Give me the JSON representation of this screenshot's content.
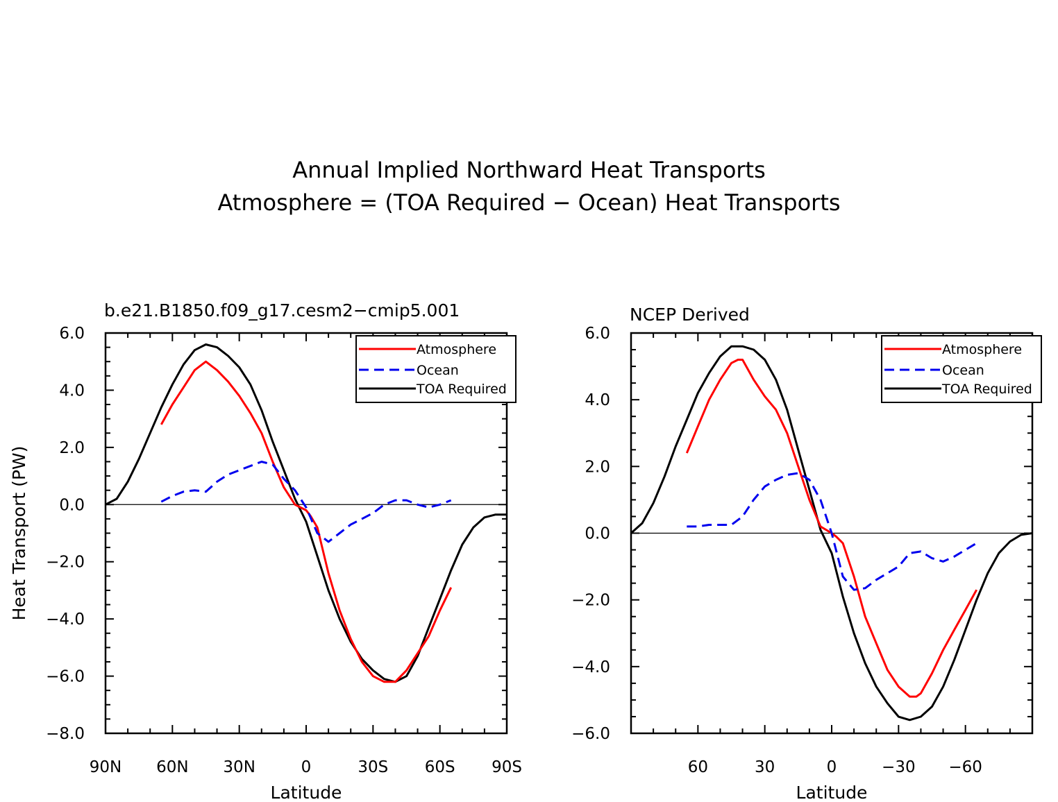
{
  "figure": {
    "title_line1": "Annual Implied Northward Heat Transports",
    "title_line2": "Atmosphere = (TOA Required - Ocean) Heat Transports"
  },
  "colors": {
    "atmosphere": "#ff0000",
    "ocean": "#0000ee",
    "toa": "#000000"
  },
  "chart_data": [
    {
      "type": "line",
      "title": "b.e21.B1850.f09_g17.cesm2-cmip5.001",
      "xlabel": "Latitude",
      "ylabel": "Heat Transport (PW)",
      "xlim": [
        90,
        -90
      ],
      "ylim": [
        -8,
        6
      ],
      "xticks": [
        90,
        60,
        30,
        0,
        -30,
        -60,
        -90
      ],
      "xtick_labels": [
        "90N",
        "60N",
        "30N",
        "0",
        "30S",
        "60S",
        "90S"
      ],
      "yticks": [
        6,
        4,
        2,
        0,
        -2,
        -4,
        -6,
        -8
      ],
      "ytick_labels": [
        "6.0",
        "4.0",
        "2.0",
        "0.0",
        "-2.0",
        "-4.0",
        "-6.0",
        "-8.0"
      ],
      "legend": {
        "position": "top-right",
        "entries": [
          "Atmosphere",
          "Ocean",
          "TOA Required"
        ]
      },
      "series": [
        {
          "name": "TOA Required",
          "style": "solid",
          "color": "#000000",
          "x": [
            90,
            85,
            80,
            75,
            70,
            65,
            60,
            55,
            50,
            45,
            40,
            35,
            30,
            25,
            20,
            15,
            10,
            5,
            0,
            -5,
            -10,
            -15,
            -20,
            -25,
            -30,
            -35,
            -40,
            -45,
            -50,
            -55,
            -60,
            -65,
            -70,
            -75,
            -80,
            -85,
            -90
          ],
          "y": [
            0.0,
            0.2,
            0.8,
            1.6,
            2.5,
            3.4,
            4.2,
            4.9,
            5.4,
            5.6,
            5.5,
            5.2,
            4.8,
            4.2,
            3.3,
            2.2,
            1.2,
            0.2,
            -0.6,
            -1.8,
            -3.0,
            -4.0,
            -4.8,
            -5.4,
            -5.8,
            -6.1,
            -6.2,
            -6.0,
            -5.3,
            -4.3,
            -3.3,
            -2.3,
            -1.4,
            -0.8,
            -0.45,
            -0.35,
            -0.35
          ]
        },
        {
          "name": "Atmosphere",
          "style": "solid",
          "color": "#ff0000",
          "x": [
            65,
            60,
            55,
            50,
            45,
            40,
            35,
            30,
            25,
            20,
            15,
            10,
            5,
            0,
            -2,
            -5,
            -10,
            -15,
            -20,
            -25,
            -30,
            -35,
            -40,
            -45,
            -50,
            -55,
            -60,
            -65
          ],
          "y": [
            2.8,
            3.5,
            4.1,
            4.7,
            5.0,
            4.7,
            4.3,
            3.8,
            3.2,
            2.5,
            1.5,
            0.6,
            0.0,
            -0.2,
            -0.4,
            -0.8,
            -2.4,
            -3.7,
            -4.7,
            -5.5,
            -6.0,
            -6.2,
            -6.2,
            -5.8,
            -5.2,
            -4.6,
            -3.7,
            -2.9
          ]
        },
        {
          "name": "Ocean",
          "style": "dashed",
          "color": "#0000ee",
          "x": [
            65,
            60,
            55,
            50,
            45,
            40,
            35,
            30,
            25,
            20,
            15,
            10,
            5,
            0,
            -5,
            -10,
            -15,
            -20,
            -25,
            -30,
            -35,
            -40,
            -45,
            -50,
            -55,
            -60,
            -65
          ],
          "y": [
            0.1,
            0.3,
            0.45,
            0.5,
            0.45,
            0.8,
            1.05,
            1.2,
            1.35,
            1.5,
            1.4,
            0.9,
            0.5,
            -0.1,
            -1.0,
            -1.3,
            -1.0,
            -0.7,
            -0.5,
            -0.3,
            0.0,
            0.15,
            0.15,
            0.0,
            -0.1,
            0.0,
            0.15
          ]
        }
      ]
    },
    {
      "type": "line",
      "title": "NCEP Derived",
      "xlabel": "Latitude",
      "ylabel": "",
      "xlim": [
        90,
        -90
      ],
      "ylim": [
        -6,
        6
      ],
      "xticks": [
        60,
        30,
        0,
        -30,
        -60
      ],
      "xtick_labels": [
        "60",
        "30",
        "0",
        "-30",
        "-60"
      ],
      "yticks": [
        6,
        4,
        2,
        0,
        -2,
        -4,
        -6
      ],
      "ytick_labels": [
        "6.0",
        "4.0",
        "2.0",
        "0.0",
        "-2.0",
        "-4.0",
        "-6.0"
      ],
      "legend": {
        "position": "top-right",
        "entries": [
          "Atmosphere",
          "Ocean",
          "TOA Required"
        ]
      },
      "series": [
        {
          "name": "TOA Required",
          "style": "solid",
          "color": "#000000",
          "x": [
            90,
            85,
            80,
            75,
            70,
            65,
            60,
            55,
            50,
            45,
            40,
            35,
            30,
            25,
            20,
            15,
            10,
            5,
            0,
            -5,
            -10,
            -15,
            -20,
            -25,
            -30,
            -35,
            -40,
            -45,
            -50,
            -55,
            -60,
            -65,
            -70,
            -75,
            -80,
            -85,
            -90
          ],
          "y": [
            0.0,
            0.3,
            0.9,
            1.7,
            2.6,
            3.4,
            4.2,
            4.8,
            5.3,
            5.6,
            5.6,
            5.5,
            5.2,
            4.6,
            3.7,
            2.5,
            1.3,
            0.1,
            -0.6,
            -1.9,
            -3.0,
            -3.9,
            -4.6,
            -5.1,
            -5.5,
            -5.6,
            -5.5,
            -5.2,
            -4.6,
            -3.8,
            -2.9,
            -2.0,
            -1.2,
            -0.6,
            -0.25,
            -0.05,
            0.0
          ]
        },
        {
          "name": "Atmosphere",
          "style": "solid",
          "color": "#ff0000",
          "x": [
            65,
            60,
            55,
            50,
            45,
            42,
            40,
            35,
            30,
            25,
            20,
            15,
            10,
            5,
            0,
            -2,
            -5,
            -10,
            -15,
            -20,
            -25,
            -30,
            -35,
            -38,
            -40,
            -45,
            -50,
            -55,
            -60,
            -65
          ],
          "y": [
            2.4,
            3.2,
            4.0,
            4.6,
            5.1,
            5.2,
            5.2,
            4.6,
            4.1,
            3.7,
            3.0,
            2.0,
            1.0,
            0.2,
            0.0,
            -0.1,
            -0.3,
            -1.3,
            -2.5,
            -3.3,
            -4.1,
            -4.6,
            -4.9,
            -4.9,
            -4.8,
            -4.2,
            -3.5,
            -2.9,
            -2.3,
            -1.7
          ]
        },
        {
          "name": "Ocean",
          "style": "dashed",
          "color": "#0000ee",
          "x": [
            65,
            60,
            55,
            50,
            45,
            40,
            35,
            30,
            25,
            20,
            15,
            10,
            5,
            0,
            -5,
            -10,
            -15,
            -20,
            -25,
            -30,
            -35,
            -40,
            -45,
            -50,
            -55,
            -60,
            -65
          ],
          "y": [
            0.2,
            0.2,
            0.25,
            0.25,
            0.25,
            0.5,
            1.0,
            1.4,
            1.6,
            1.75,
            1.8,
            1.6,
            1.0,
            0.0,
            -1.3,
            -1.7,
            -1.65,
            -1.4,
            -1.2,
            -1.0,
            -0.6,
            -0.55,
            -0.75,
            -0.85,
            -0.7,
            -0.5,
            -0.3
          ]
        }
      ]
    }
  ]
}
